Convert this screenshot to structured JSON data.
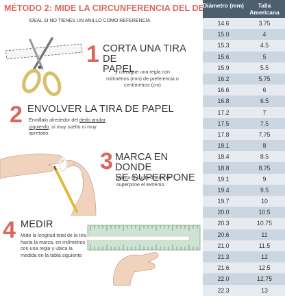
{
  "title": "MÉTODO 2: MIDE LA CIRCUNFERENCIA DEL DEDO",
  "subtitle": "IDEAL SI NO TIENES UN ANILLO COMO REFERENCIA",
  "steps": [
    {
      "number": "1",
      "heading_line1": "CORTA UNA TIRA DE",
      "heading_line2": "PAPEL",
      "body_line1": "y consigue una regla con",
      "body_line2": "milímetros (mm) de preferencia  o",
      "body_line3": "centímetros (cm)"
    },
    {
      "number": "2",
      "heading_line1": "ENVOLVER LA TIRA DE PAPEL",
      "body_line1": "Enróllalo alrededor del ",
      "body_link1": "dedo anular",
      "body_link2": "izquierdo",
      "body_line2_rest": ", ni muy suelto ni muy",
      "body_line3": "apretado."
    },
    {
      "number": "3",
      "heading_line1": "MARCA EN DONDE",
      "heading_line2": "SE SUPERPONE",
      "body_line1": "Marca el punto donde se",
      "body_line2": "superpone el extremo."
    },
    {
      "number": "4",
      "heading_line1": "MEDIR",
      "body_line1": "Mide la longitud total de la tira",
      "body_line2": "hasta la marca, en milímetros",
      "body_line3": "con una regla y ubica la",
      "body_line4": "medida en la tabla siguiente"
    }
  ],
  "table": {
    "header_diameter": "Diámetro (mm)",
    "header_size": "Talla Americana",
    "rows": [
      {
        "diameter": "14.6",
        "size": "3.75"
      },
      {
        "diameter": "15.0",
        "size": "4"
      },
      {
        "diameter": "15.3",
        "size": "4.5"
      },
      {
        "diameter": "15.6",
        "size": "5"
      },
      {
        "diameter": "15.9",
        "size": "5.5"
      },
      {
        "diameter": "16.2",
        "size": "5.75"
      },
      {
        "diameter": "16.6",
        "size": "6"
      },
      {
        "diameter": "16.8",
        "size": "6.5"
      },
      {
        "diameter": "17.2",
        "size": "7"
      },
      {
        "diameter": "17.5",
        "size": "7.5"
      },
      {
        "diameter": "17.8",
        "size": "7.75"
      },
      {
        "diameter": "18.1",
        "size": "8"
      },
      {
        "diameter": "18.4",
        "size": "8.5"
      },
      {
        "diameter": "18.8",
        "size": "8.75"
      },
      {
        "diameter": "19.1",
        "size": "9"
      },
      {
        "diameter": "19.4",
        "size": "9.5"
      },
      {
        "diameter": "19.7",
        "size": "10"
      },
      {
        "diameter": "20.0",
        "size": "10.5"
      },
      {
        "diameter": "20.3",
        "size": "10.75"
      },
      {
        "diameter": "20.6",
        "size": "11"
      },
      {
        "diameter": "21.0",
        "size": "11.5"
      },
      {
        "diameter": "21.3",
        "size": "12"
      },
      {
        "diameter": "21.6",
        "size": "12.5"
      },
      {
        "diameter": "22.0",
        "size": "12.75"
      },
      {
        "diameter": "22.3",
        "size": "13"
      }
    ]
  },
  "colors": {
    "accent": "#d9675c",
    "table_header": "#4d5f6f",
    "row_light": "#e6ebf1",
    "row_dark": "#ccd6e1"
  }
}
